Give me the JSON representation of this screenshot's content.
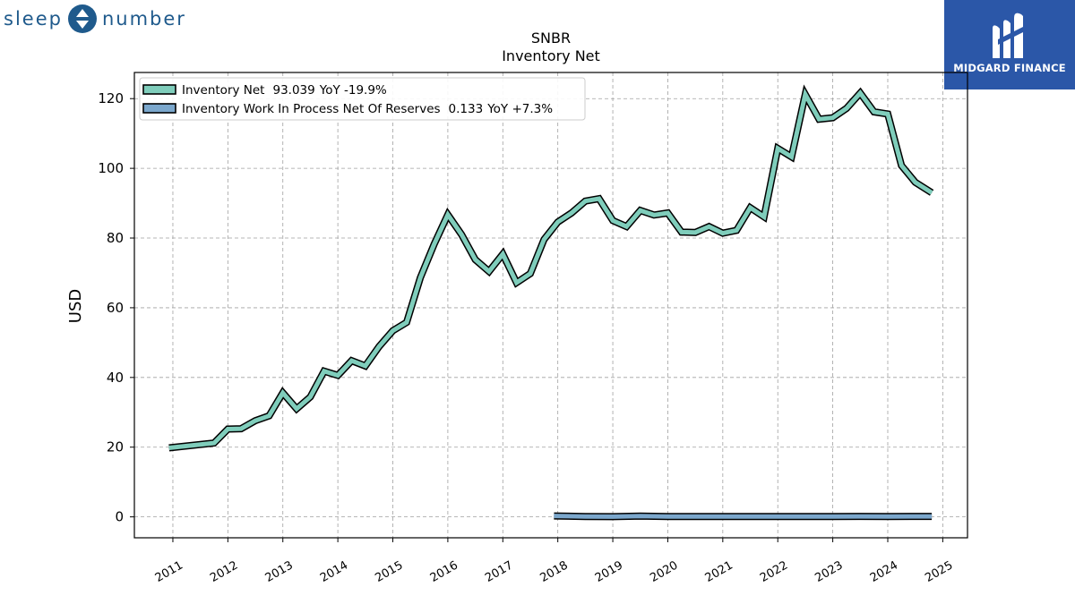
{
  "brand": {
    "left_word": "sleep",
    "right_word": "number",
    "logo_icon": "sleep-number-logo-icon",
    "color": "#1f5a8c"
  },
  "watermark": {
    "name": "MIDGARD FINANCE",
    "logo_icon": "midgard-m-logo-icon",
    "background": "#2b57a8"
  },
  "chart_data": {
    "type": "line",
    "title": "SNBR",
    "subtitle": "Inventory Net",
    "xlabel": "",
    "ylabel": "USD",
    "xlim": [
      2010.3,
      2025.45
    ],
    "ylim": [
      -6,
      127.5
    ],
    "yticks": [
      0,
      20,
      40,
      60,
      80,
      100,
      120
    ],
    "xticks": [
      "2011",
      "2012",
      "2013",
      "2014",
      "2015",
      "2016",
      "2017",
      "2018",
      "2019",
      "2020",
      "2021",
      "2022",
      "2023",
      "2024",
      "2025"
    ],
    "grid": true,
    "legend_position": "top-left",
    "series": [
      {
        "name": "Inventory Net",
        "legend_value": "93.039",
        "legend_yoy": "YoY -19.9%",
        "color": "#7fcdbb",
        "points": [
          [
            2010.93,
            19.8
          ],
          [
            2011.75,
            21.2
          ],
          [
            2012.0,
            25.2
          ],
          [
            2012.24,
            25.3
          ],
          [
            2012.5,
            27.6
          ],
          [
            2012.75,
            29.0
          ],
          [
            2013.0,
            35.6
          ],
          [
            2013.25,
            31.0
          ],
          [
            2013.5,
            34.4
          ],
          [
            2013.75,
            41.8
          ],
          [
            2014.0,
            40.6
          ],
          [
            2014.25,
            44.8
          ],
          [
            2014.5,
            43.3
          ],
          [
            2014.75,
            48.9
          ],
          [
            2015.0,
            53.4
          ],
          [
            2015.25,
            55.8
          ],
          [
            2015.5,
            68.6
          ],
          [
            2015.75,
            78.2
          ],
          [
            2016.0,
            86.7
          ],
          [
            2016.25,
            81.0
          ],
          [
            2016.5,
            73.8
          ],
          [
            2016.75,
            70.4
          ],
          [
            2017.0,
            75.4
          ],
          [
            2017.25,
            67.2
          ],
          [
            2017.5,
            69.8
          ],
          [
            2017.75,
            79.6
          ],
          [
            2018.0,
            84.6
          ],
          [
            2018.25,
            87.2
          ],
          [
            2018.5,
            90.6
          ],
          [
            2018.75,
            91.3
          ],
          [
            2019.0,
            85.0
          ],
          [
            2019.25,
            83.3
          ],
          [
            2019.5,
            87.9
          ],
          [
            2019.75,
            86.6
          ],
          [
            2020.0,
            87.2
          ],
          [
            2020.25,
            81.7
          ],
          [
            2020.5,
            81.6
          ],
          [
            2020.75,
            83.3
          ],
          [
            2021.0,
            81.4
          ],
          [
            2021.25,
            82.2
          ],
          [
            2021.5,
            88.7
          ],
          [
            2021.75,
            86.1
          ],
          [
            2022.0,
            105.7
          ],
          [
            2022.25,
            103.3
          ],
          [
            2022.5,
            121.2
          ],
          [
            2022.75,
            114.1
          ],
          [
            2023.0,
            114.5
          ],
          [
            2023.25,
            117.2
          ],
          [
            2023.5,
            121.6
          ],
          [
            2023.75,
            116.2
          ],
          [
            2024.0,
            115.6
          ],
          [
            2024.25,
            100.8
          ],
          [
            2024.5,
            96.0
          ],
          [
            2024.8,
            93.0
          ]
        ]
      },
      {
        "name": "Inventory Work In Process Net Of Reserves",
        "legend_value": "0.133",
        "legend_yoy": "YoY +7.3%",
        "color": "#7ba7cc",
        "points": [
          [
            2017.93,
            0.26
          ],
          [
            2018.5,
            0.12
          ],
          [
            2019.0,
            0.05
          ],
          [
            2019.5,
            0.22
          ],
          [
            2020.0,
            0.08
          ],
          [
            2020.5,
            0.12
          ],
          [
            2021.0,
            0.11
          ],
          [
            2021.5,
            0.11
          ],
          [
            2022.0,
            0.1
          ],
          [
            2022.5,
            0.09
          ],
          [
            2023.0,
            0.11
          ],
          [
            2023.5,
            0.13
          ],
          [
            2024.0,
            0.12
          ],
          [
            2024.5,
            0.13
          ],
          [
            2024.8,
            0.133
          ]
        ]
      }
    ]
  }
}
